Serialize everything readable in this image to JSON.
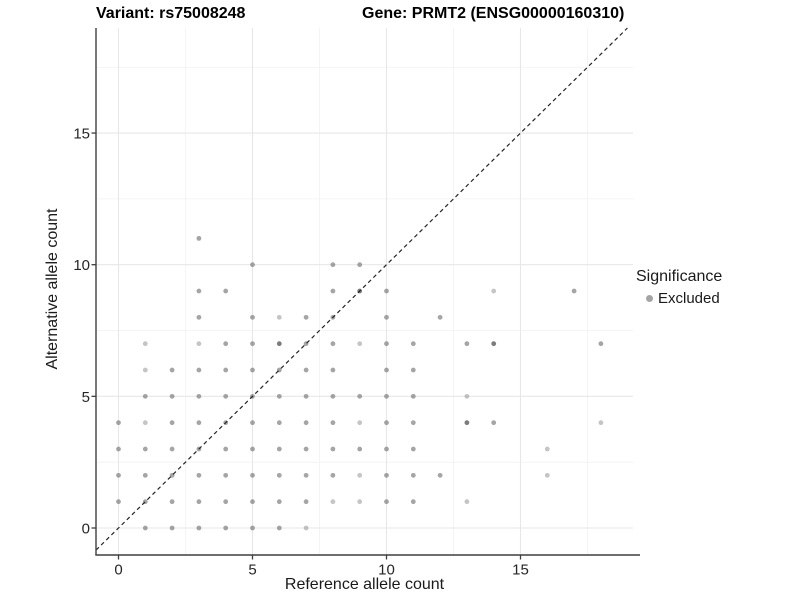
{
  "page": {
    "background": "#ffffff"
  },
  "chart_data": {
    "type": "scatter",
    "titles": {
      "left": "Variant: rs75008248",
      "right": "Gene: PRMT2 (ENSG00000160310)"
    },
    "xlabel": "Reference allele count",
    "ylabel": "Alternative allele count",
    "x_ticks": [
      0,
      5,
      10,
      15
    ],
    "y_ticks": [
      0,
      5,
      10,
      15
    ],
    "x_minor": [
      2.5,
      7.5,
      12.5,
      17.5
    ],
    "y_minor": [
      2.5,
      7.5,
      12.5,
      17.5
    ],
    "xlim": [
      -0.85,
      19.2
    ],
    "ylim": [
      -1.03,
      19.0
    ],
    "grid": {
      "major_color": "#e7e7e7",
      "minor_color": "#f1f1f1"
    },
    "axis_line_color": "#3f3f3f",
    "reference_line": {
      "equation": "y = x",
      "style": "dashed",
      "color": "#242424"
    },
    "legend": {
      "title": "Significance",
      "items": [
        {
          "label": "Excluded",
          "color": "#a4a4a4"
        }
      ]
    },
    "point_color": "#6e6e6e",
    "point_radius": 2.4,
    "shade_opacity": {
      "1": 0.4,
      "2": 0.62,
      "3": 0.9
    },
    "points": [
      [
        1,
        0,
        2
      ],
      [
        2,
        0,
        2
      ],
      [
        3,
        0,
        2
      ],
      [
        4,
        0,
        2
      ],
      [
        5,
        0,
        2
      ],
      [
        6,
        0,
        2
      ],
      [
        7,
        0,
        1
      ],
      [
        0,
        1,
        2
      ],
      [
        1,
        1,
        2
      ],
      [
        2,
        1,
        2
      ],
      [
        3,
        1,
        2
      ],
      [
        4,
        1,
        2
      ],
      [
        5,
        1,
        2
      ],
      [
        6,
        1,
        2
      ],
      [
        7,
        1,
        2
      ],
      [
        8,
        1,
        1
      ],
      [
        9,
        1,
        1
      ],
      [
        10,
        1,
        2
      ],
      [
        11,
        1,
        2
      ],
      [
        13,
        1,
        1
      ],
      [
        0,
        2,
        2
      ],
      [
        1,
        2,
        2
      ],
      [
        2,
        2,
        2
      ],
      [
        3,
        2,
        2
      ],
      [
        4,
        2,
        2
      ],
      [
        5,
        2,
        2
      ],
      [
        6,
        2,
        2
      ],
      [
        7,
        2,
        2
      ],
      [
        8,
        2,
        2
      ],
      [
        9,
        2,
        1
      ],
      [
        10,
        2,
        2
      ],
      [
        11,
        2,
        2
      ],
      [
        12,
        2,
        2
      ],
      [
        16,
        2,
        1
      ],
      [
        0,
        3,
        2
      ],
      [
        1,
        3,
        2
      ],
      [
        2,
        3,
        2
      ],
      [
        3,
        3,
        2
      ],
      [
        4,
        3,
        2
      ],
      [
        5,
        3,
        2
      ],
      [
        6,
        3,
        2
      ],
      [
        7,
        3,
        2
      ],
      [
        8,
        3,
        2
      ],
      [
        9,
        3,
        2
      ],
      [
        10,
        3,
        2
      ],
      [
        11,
        3,
        2
      ],
      [
        16,
        3,
        1
      ],
      [
        0,
        4,
        2
      ],
      [
        1,
        4,
        1
      ],
      [
        2,
        4,
        2
      ],
      [
        3,
        4,
        2
      ],
      [
        4,
        4,
        2
      ],
      [
        5,
        4,
        2
      ],
      [
        6,
        4,
        2
      ],
      [
        7,
        4,
        2
      ],
      [
        8,
        4,
        2
      ],
      [
        9,
        4,
        1
      ],
      [
        10,
        4,
        2
      ],
      [
        11,
        4,
        2
      ],
      [
        13,
        4,
        3
      ],
      [
        14,
        4,
        2
      ],
      [
        18,
        4,
        1
      ],
      [
        1,
        5,
        2
      ],
      [
        2,
        5,
        2
      ],
      [
        3,
        5,
        2
      ],
      [
        4,
        5,
        2
      ],
      [
        5,
        5,
        2
      ],
      [
        6,
        5,
        2
      ],
      [
        7,
        5,
        2
      ],
      [
        8,
        5,
        2
      ],
      [
        9,
        5,
        2
      ],
      [
        10,
        5,
        2
      ],
      [
        11,
        5,
        2
      ],
      [
        13,
        5,
        1
      ],
      [
        1,
        6,
        1
      ],
      [
        2,
        6,
        2
      ],
      [
        3,
        6,
        2
      ],
      [
        4,
        6,
        2
      ],
      [
        5,
        6,
        2
      ],
      [
        6,
        6,
        2
      ],
      [
        7,
        6,
        2
      ],
      [
        8,
        6,
        2
      ],
      [
        10,
        6,
        2
      ],
      [
        11,
        6,
        2
      ],
      [
        1,
        7,
        1
      ],
      [
        3,
        7,
        1
      ],
      [
        4,
        7,
        2
      ],
      [
        5,
        7,
        2
      ],
      [
        6,
        7,
        3
      ],
      [
        7,
        7,
        2
      ],
      [
        8,
        7,
        2
      ],
      [
        9,
        7,
        1
      ],
      [
        10,
        7,
        2
      ],
      [
        11,
        7,
        2
      ],
      [
        13,
        7,
        2
      ],
      [
        14,
        7,
        3
      ],
      [
        18,
        7,
        2
      ],
      [
        3,
        8,
        2
      ],
      [
        5,
        8,
        2
      ],
      [
        6,
        8,
        1
      ],
      [
        7,
        8,
        2
      ],
      [
        8,
        8,
        2
      ],
      [
        10,
        8,
        2
      ],
      [
        12,
        8,
        2
      ],
      [
        3,
        9,
        2
      ],
      [
        4,
        9,
        2
      ],
      [
        8,
        9,
        2
      ],
      [
        9,
        9,
        3
      ],
      [
        10,
        9,
        2
      ],
      [
        14,
        9,
        1
      ],
      [
        17,
        9,
        2
      ],
      [
        5,
        10,
        2
      ],
      [
        8,
        10,
        2
      ],
      [
        9,
        10,
        2
      ],
      [
        3,
        11,
        2
      ]
    ]
  }
}
